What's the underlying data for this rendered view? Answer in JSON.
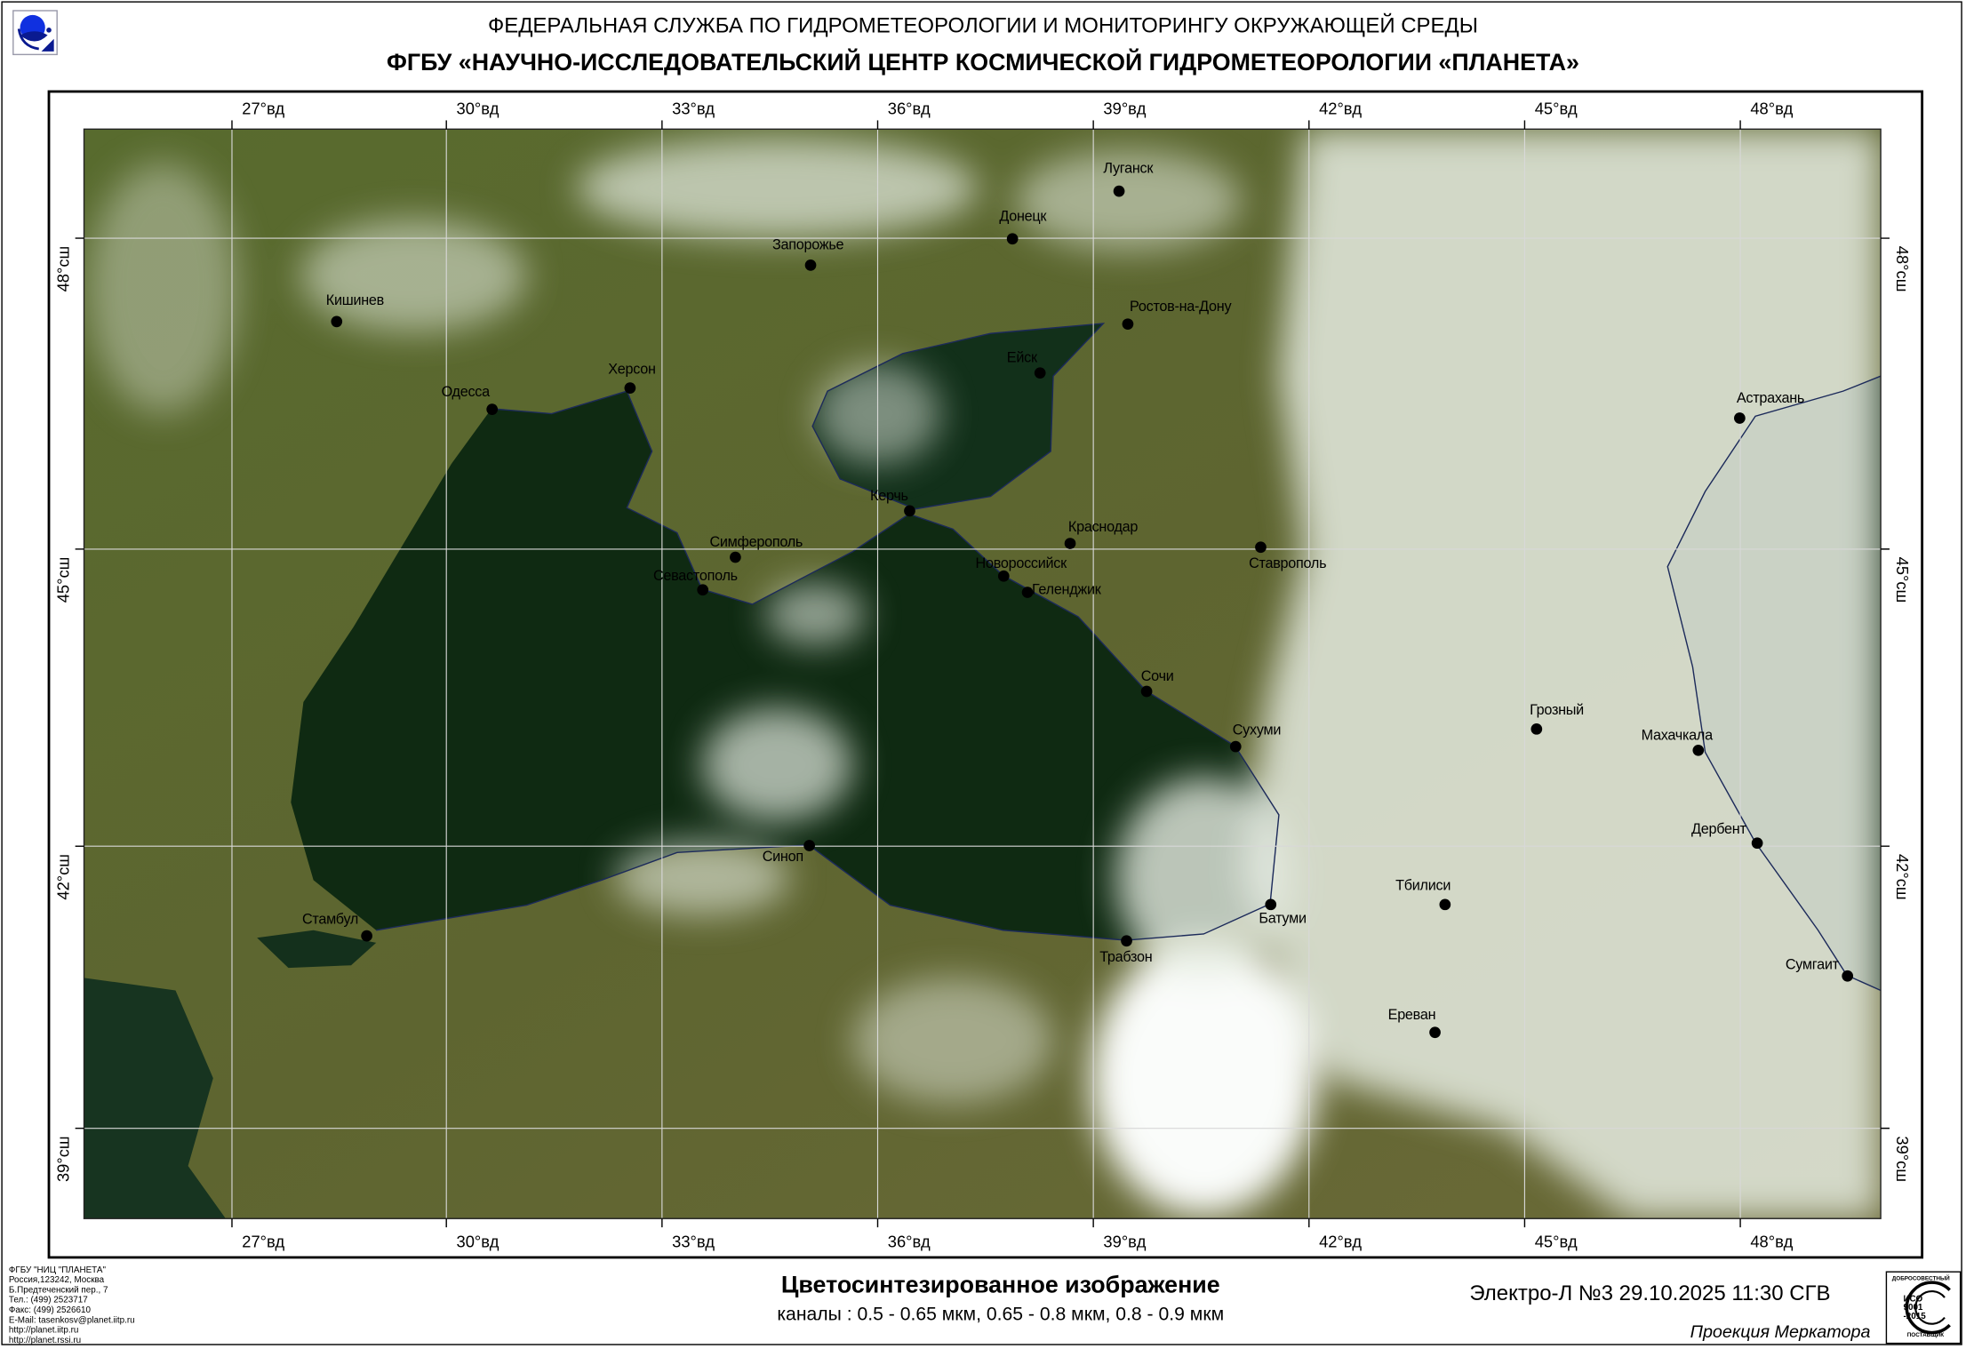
{
  "header": {
    "agency": "ФЕДЕРАЛЬНАЯ СЛУЖБА ПО ГИДРОМЕТЕОРОЛОГИИ И МОНИТОРИНГУ ОКРУЖАЮЩЕЙ СРЕДЫ",
    "center": "ФГБУ «НАУЧНО-ИССЛЕДОВАТЕЛЬСКИЙ ЦЕНТР КОСМИЧЕСКОЙ ГИДРОМЕТЕОРОЛОГИИ «ПЛАНЕТА»"
  },
  "map": {
    "longitude_labels": [
      "27°вд",
      "30°вд",
      "33°вд",
      "36°вд",
      "39°вд",
      "42°вд",
      "45°вд",
      "48°вд"
    ],
    "latitude_labels": [
      "48°сш",
      "45°сш",
      "42°сш",
      "39°сш"
    ],
    "cities": [
      "Луганск",
      "Донецк",
      "Запорожье",
      "Кишинев",
      "Ростов-на-Дону",
      "Ейск",
      "Херсон",
      "Одесса",
      "Астрахань",
      "Керчь",
      "Краснодар",
      "Симферополь",
      "Ставрополь",
      "Новороссийск",
      "Севастополь",
      "Геленджик",
      "Сочи",
      "Грозный",
      "Сухуми",
      "Махачкала",
      "Дербент",
      "Синоп",
      "Батуми",
      "Тбилиси",
      "Стамбул",
      "Трабзон",
      "Сумгаит",
      "Ереван"
    ],
    "colors": {
      "land": "#5b6a2c",
      "sea": "#0f2a12",
      "cloud": "#e8eee4",
      "grid": "#d8d8d8"
    }
  },
  "footer": {
    "contact": [
      "ФГБУ \"НИЦ \"ПЛАНЕТА\"",
      "Россия,123242, Москва",
      "Б.Предтеченский пер., 7",
      "Тел.:  (499) 2523717",
      "Факс: (499) 2526610",
      "E-Mail: tasenkosv@planet.iitp.ru",
      "http://planet.iitp.ru",
      "http://planet.rssi.ru"
    ],
    "title": "Цветосинтезированное изображение",
    "channels": "каналы : 0.5 - 0.65 мкм, 0.65 - 0.8 мкм, 0.8 - 0.9 мкм",
    "satellite": "Электро-Л №3 29.10.2025  11:30 СГВ",
    "projection": "Проекция Меркатора",
    "iso_badge": {
      "top": "ДОБРОСОВЕСТНЫЙ",
      "middle": "ИСО 9001 -2015",
      "bottom": "ПОСТАВЩИК"
    }
  }
}
